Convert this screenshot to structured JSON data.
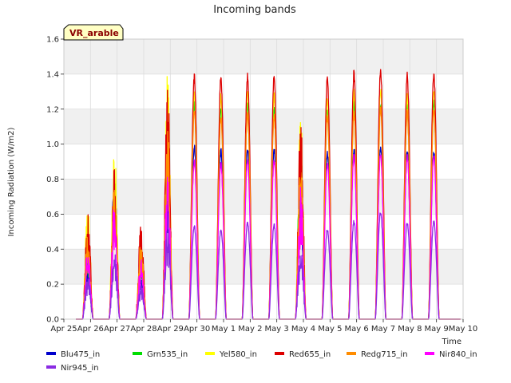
{
  "chart_data": {
    "type": "line",
    "title": "Incoming bands",
    "xlabel": "Time",
    "ylabel": "Incoming Radiation (W/m2)",
    "ylim": [
      0.0,
      1.6
    ],
    "xlim": [
      0,
      15
    ],
    "grid": true,
    "legend_position": "bottom",
    "y_ticks": [
      "0.0",
      "0.2",
      "0.4",
      "0.6",
      "0.8",
      "1.0",
      "1.2",
      "1.4",
      "1.6"
    ],
    "x_ticks": [
      "Apr 25",
      "Apr 26",
      "Apr 27",
      "Apr 28",
      "Apr 29",
      "Apr 30",
      "May 1",
      "May 2",
      "May 3",
      "May 4",
      "May 5",
      "May 6",
      "May 7",
      "May 8",
      "May 9",
      "May 10"
    ],
    "day_centers": [
      0.9,
      1.9,
      2.9,
      3.9,
      4.9,
      5.9,
      6.9,
      7.9,
      8.9,
      9.9,
      10.9,
      11.9,
      12.9,
      13.9
    ],
    "series": [
      {
        "name": "Blu475_in",
        "color": "#0000cc",
        "daily_peaks": [
          0.35,
          0.85,
          0.3,
          0.85,
          1.0,
          0.98,
          0.99,
          0.99,
          0.85,
          0.97,
          0.99,
          0.99,
          0.97,
          0.98
        ]
      },
      {
        "name": "Grn535_in",
        "color": "#00dd00",
        "daily_peaks": [
          0.45,
          0.9,
          0.35,
          1.0,
          1.25,
          1.23,
          1.25,
          1.24,
          1.05,
          1.22,
          1.25,
          1.26,
          1.24,
          1.26
        ]
      },
      {
        "name": "Yel580_in",
        "color": "#ffff00",
        "daily_peaks": [
          0.67,
          1.0,
          0.4,
          1.42,
          1.3,
          1.3,
          1.32,
          1.3,
          1.17,
          1.28,
          1.32,
          1.33,
          1.3,
          1.33
        ]
      },
      {
        "name": "Red655_in",
        "color": "#dd0000",
        "daily_peaks": [
          0.64,
          0.88,
          0.56,
          1.38,
          1.41,
          1.4,
          1.41,
          1.41,
          1.16,
          1.39,
          1.43,
          1.45,
          1.42,
          1.44
        ]
      },
      {
        "name": "Redg715_in",
        "color": "#ff8c00",
        "daily_peaks": [
          0.5,
          0.8,
          0.45,
          1.1,
          1.2,
          1.18,
          1.2,
          1.18,
          0.92,
          1.18,
          1.2,
          1.22,
          1.2,
          1.22
        ]
      },
      {
        "name": "Nir840_in",
        "color": "#ff00ff",
        "daily_peaks": [
          0.42,
          0.7,
          0.35,
          0.85,
          0.92,
          0.9,
          0.92,
          0.92,
          0.76,
          0.9,
          0.95,
          0.96,
          0.94,
          0.95
        ]
      },
      {
        "name": "Nir945_in",
        "color": "#8a2be2",
        "daily_peaks": [
          0.25,
          0.4,
          0.2,
          0.56,
          0.54,
          0.52,
          0.56,
          0.55,
          0.43,
          0.52,
          0.57,
          0.62,
          0.56,
          0.57
        ]
      }
    ]
  },
  "tag": {
    "label": "VR_arable"
  },
  "legend": {
    "items": [
      {
        "label": "Blu475_in",
        "color": "#0000cc"
      },
      {
        "label": "Grn535_in",
        "color": "#00dd00"
      },
      {
        "label": "Yel580_in",
        "color": "#ffff00"
      },
      {
        "label": "Red655_in",
        "color": "#dd0000"
      },
      {
        "label": "Redg715_in",
        "color": "#ff8c00"
      },
      {
        "label": "Nir840_in",
        "color": "#ff00ff"
      },
      {
        "label": "Nir945_in",
        "color": "#8a2be2"
      }
    ]
  }
}
